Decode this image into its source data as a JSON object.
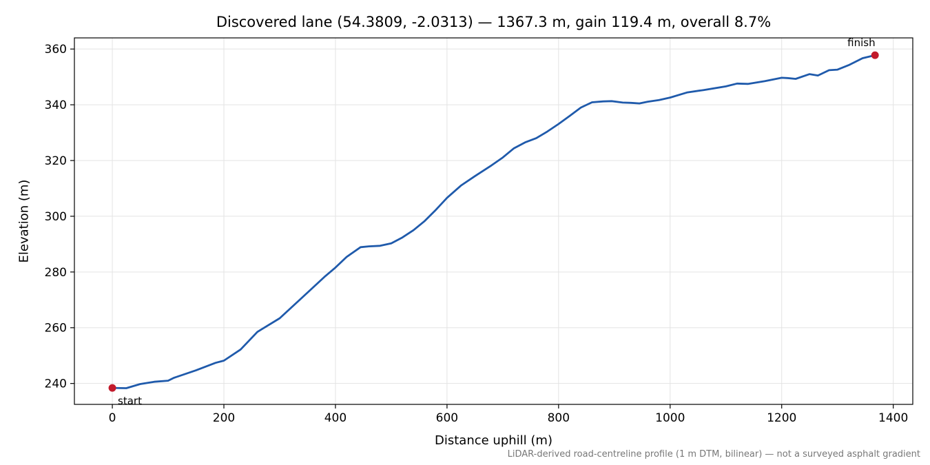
{
  "chart_data": {
    "type": "line",
    "title": "Discovered lane (54.3809, -2.0313) — 1367.3 m, gain 119.4 m, overall 8.7%",
    "xlabel": "Distance uphill (m)",
    "ylabel": "Elevation (m)",
    "xlim": [
      -68,
      1435
    ],
    "ylim": [
      232.5,
      364
    ],
    "x_ticks": [
      0,
      200,
      400,
      600,
      800,
      1000,
      1200,
      1400
    ],
    "y_ticks": [
      240,
      260,
      280,
      300,
      320,
      340,
      360
    ],
    "grid": true,
    "line_color": "#1f5aab",
    "marker_color": "#c21a2b",
    "series": [
      {
        "x": [
          0,
          25,
          50,
          75,
          100,
          110,
          150,
          185,
          200,
          230,
          260,
          300,
          340,
          380,
          400,
          420,
          445,
          460,
          480,
          500,
          520,
          540,
          560,
          580,
          600,
          625,
          650,
          680,
          700,
          720,
          740,
          760,
          780,
          800,
          820,
          840,
          860,
          880,
          895,
          915,
          930,
          945,
          960,
          980,
          1000,
          1030,
          1060,
          1100,
          1120,
          1140,
          1170,
          1200,
          1210,
          1225,
          1250,
          1265,
          1285,
          1300,
          1320,
          1345,
          1367.3
        ],
        "y": [
          238.4,
          238.3,
          239.8,
          240.6,
          241.0,
          242.0,
          244.7,
          247.4,
          248.2,
          252.2,
          258.5,
          263.4,
          270.8,
          278.2,
          281.6,
          285.4,
          288.9,
          289.2,
          289.4,
          290.3,
          292.4,
          295.0,
          298.3,
          302.3,
          306.6,
          311.0,
          314.4,
          318.3,
          321.1,
          324.4,
          326.5,
          328.0,
          330.4,
          333.1,
          336.0,
          339.0,
          340.9,
          341.2,
          341.3,
          340.8,
          340.7,
          340.5,
          341.1,
          341.7,
          342.6,
          344.4,
          345.3,
          346.6,
          347.6,
          347.5,
          348.5,
          349.7,
          349.6,
          349.3,
          351.0,
          350.5,
          352.4,
          352.6,
          354.2,
          356.7,
          357.8
        ]
      }
    ],
    "annotations": [
      {
        "text": "start",
        "x": 0,
        "y": 238.4
      },
      {
        "text": "finish",
        "x": 1367.3,
        "y": 357.8
      }
    ]
  },
  "footnote": "LiDAR-derived road-centreline profile (1 m DTM, bilinear) — not a surveyed asphalt gradient"
}
